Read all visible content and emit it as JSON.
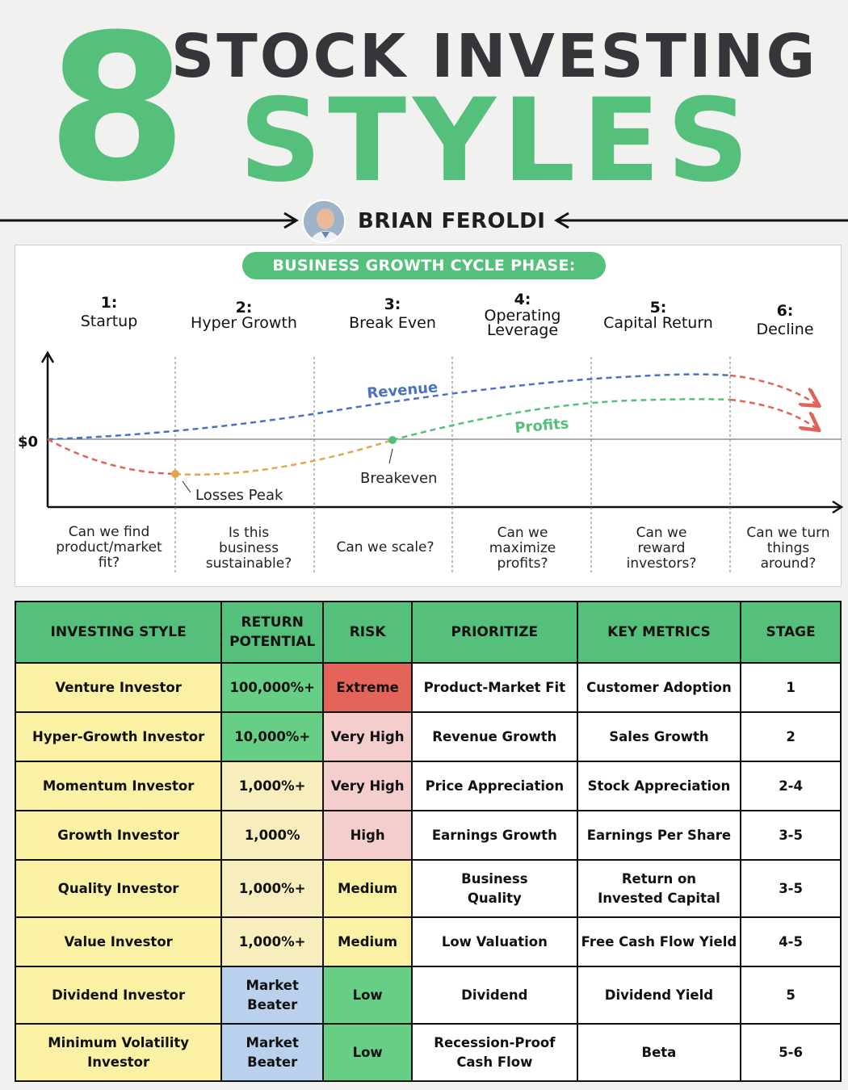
{
  "header": {
    "number": "8",
    "line1": "STOCK INVESTING",
    "line2": "STYLES",
    "author": "BRIAN FEROLDI"
  },
  "colors": {
    "green": "#55c07b",
    "dark": "#35353a",
    "revenue": "#4a72c4",
    "profits": "#55c07b",
    "losses": "#e0635a",
    "loss_recovery": "#e0a64a"
  },
  "cycle": {
    "title": "BUSINESS GROWTH CYCLE PHASE:",
    "phases": [
      {
        "num": "1:",
        "label": "Startup",
        "question": [
          "Can we find",
          "product/market",
          "fit?"
        ]
      },
      {
        "num": "2:",
        "label": "Hyper Growth",
        "question": [
          "Is this",
          "business",
          "sustainable?"
        ]
      },
      {
        "num": "3:",
        "label": "Break Even",
        "question": [
          "Can we scale?"
        ]
      },
      {
        "num": "4:",
        "label": "Operating Leverage",
        "label_lines": [
          "Operating",
          "Leverage"
        ],
        "question": [
          "Can we",
          "maximize",
          "profits?"
        ]
      },
      {
        "num": "5:",
        "label": "Capital Return",
        "question": [
          "Can we",
          "reward",
          "investors?"
        ]
      },
      {
        "num": "6:",
        "label": "Decline",
        "question": [
          "Can we turn",
          "things",
          "around?"
        ]
      }
    ],
    "axis_zero_label": "$0",
    "revenue_label": "Revenue",
    "profits_label": "Profits",
    "losses_peak_label": "Losses Peak",
    "breakeven_label": "Breakeven"
  },
  "table": {
    "headers": [
      "INVESTING STYLE",
      "RETURN POTENTIAL",
      "RISK",
      "PRIORITIZE",
      "KEY METRICS",
      "STAGE"
    ],
    "header_return_lines": [
      "RETURN",
      "POTENTIAL"
    ],
    "rows": [
      {
        "style": [
          "Venture Investor"
        ],
        "return": [
          "100,000%+"
        ],
        "return_tone": "green",
        "risk": "Extreme",
        "risk_tone": "red",
        "prioritize": [
          "Product-Market Fit"
        ],
        "metrics": [
          "Customer Adoption"
        ],
        "stage": "1"
      },
      {
        "style": [
          "Hyper-Growth Investor"
        ],
        "return": [
          "10,000%+"
        ],
        "return_tone": "green",
        "risk": "Very High",
        "risk_tone": "pink",
        "prioritize": [
          "Revenue Growth"
        ],
        "metrics": [
          "Sales Growth"
        ],
        "stage": "2"
      },
      {
        "style": [
          "Momentum Investor"
        ],
        "return": [
          "1,000%+"
        ],
        "return_tone": "cream",
        "risk": "Very High",
        "risk_tone": "pink",
        "prioritize": [
          "Price Appreciation"
        ],
        "metrics": [
          "Stock Appreciation"
        ],
        "stage": "2-4"
      },
      {
        "style": [
          "Growth Investor"
        ],
        "return": [
          "1,000%"
        ],
        "return_tone": "cream",
        "risk": "High",
        "risk_tone": "pink",
        "prioritize": [
          "Earnings Growth"
        ],
        "metrics": [
          "Earnings Per Share"
        ],
        "stage": "3-5"
      },
      {
        "style": [
          "Quality Investor"
        ],
        "return": [
          "1,000%+"
        ],
        "return_tone": "cream",
        "risk": "Medium",
        "risk_tone": "yellow",
        "prioritize": [
          "Business",
          "Quality"
        ],
        "metrics": [
          "Return on",
          "Invested Capital"
        ],
        "stage": "3-5"
      },
      {
        "style": [
          "Value Investor"
        ],
        "return": [
          "1,000%+"
        ],
        "return_tone": "cream",
        "risk": "Medium",
        "risk_tone": "yellow",
        "prioritize": [
          "Low Valuation"
        ],
        "metrics": [
          "Free Cash Flow Yield"
        ],
        "stage": "4-5"
      },
      {
        "style": [
          "Dividend Investor"
        ],
        "return": [
          "Market",
          "Beater"
        ],
        "return_tone": "blue",
        "risk": "Low",
        "risk_tone": "green",
        "prioritize": [
          "Dividend"
        ],
        "metrics": [
          "Dividend Yield"
        ],
        "stage": "5"
      },
      {
        "style": [
          "Minimum Volatility",
          "Investor"
        ],
        "return": [
          "Market",
          "Beater"
        ],
        "return_tone": "blue",
        "risk": "Low",
        "risk_tone": "green",
        "prioritize": [
          "Recession-Proof",
          "Cash Flow"
        ],
        "metrics": [
          "Beta"
        ],
        "stage": "5-6"
      }
    ]
  }
}
